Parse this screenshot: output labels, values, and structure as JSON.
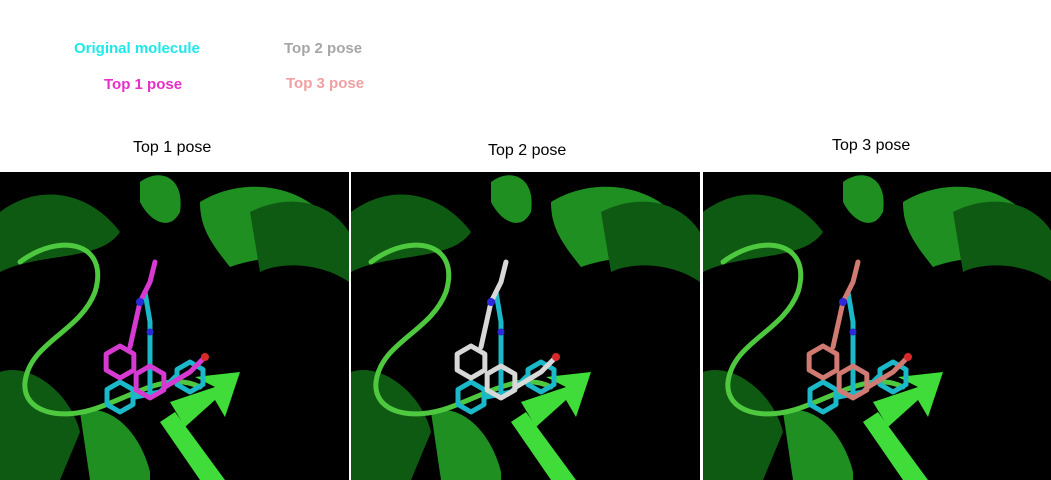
{
  "legend": [
    {
      "label": "Original molecule",
      "color": "#1ee8e8"
    },
    {
      "label": "Top 1 pose",
      "color": "#e62ec8"
    },
    {
      "label": "Top 2 pose",
      "color": "#a6a6a6"
    },
    {
      "label": "Top 3 pose",
      "color": "#f0a0a0"
    }
  ],
  "panels": [
    {
      "title": "Top 1 pose",
      "pose_color": "#d63ad0"
    },
    {
      "title": "Top 2 pose",
      "pose_color": "#d8d8d8"
    },
    {
      "title": "Top 3 pose",
      "pose_color": "#d07a72"
    }
  ],
  "colors": {
    "protein_dark": "#0f5a12",
    "protein_mid": "#1f8f22",
    "protein_bright": "#3fdc3a",
    "loop": "#4ec83f",
    "original": "#1ab8c8",
    "nitrogen": "#2a2ad8",
    "oxygen": "#d82a2a",
    "background": "#000000"
  }
}
